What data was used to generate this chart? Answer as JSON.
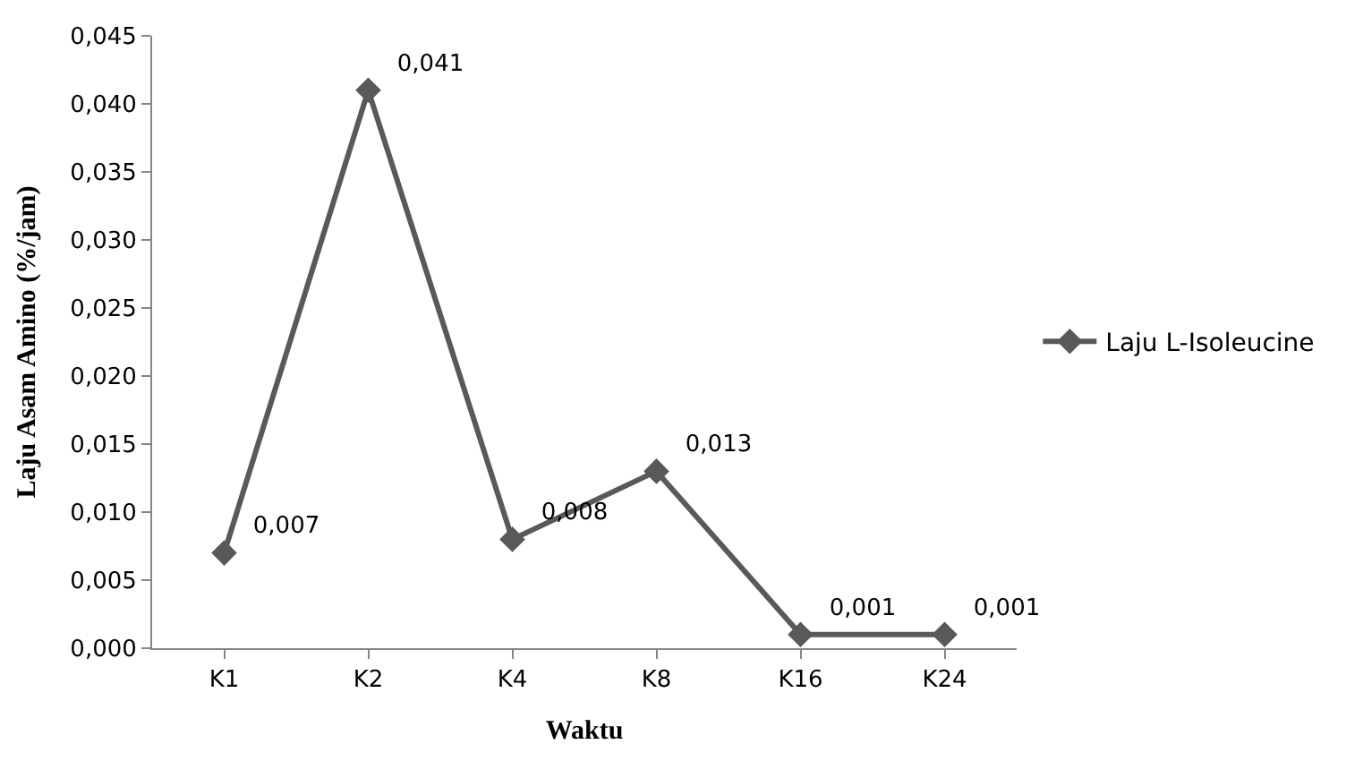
{
  "chart_data": {
    "type": "line",
    "xlabel": "Waktu",
    "ylabel": "Laju Asam Amino (%/jam)",
    "categories": [
      "K1",
      "K2",
      "K4",
      "K8",
      "K16",
      "K24"
    ],
    "series": [
      {
        "name": "Laju L-Isoleucine",
        "color": "#595959",
        "values": [
          0.007,
          0.041,
          0.008,
          0.013,
          0.001,
          0.001
        ],
        "value_labels": [
          "0,007",
          "0,041",
          "0,008",
          "0,013",
          "0,001",
          "0,001"
        ]
      }
    ],
    "ylim": [
      0,
      0.045
    ],
    "yticks": [
      {
        "value": 0,
        "label": "0,000"
      },
      {
        "value": 0.005,
        "label": "0,005"
      },
      {
        "value": 0.01,
        "label": "0,010"
      },
      {
        "value": 0.015,
        "label": "0,015"
      },
      {
        "value": 0.02,
        "label": "0,020"
      },
      {
        "value": 0.025,
        "label": "0,025"
      },
      {
        "value": 0.03,
        "label": "0,030"
      },
      {
        "value": 0.035,
        "label": "0,035"
      },
      {
        "value": 0.04,
        "label": "0,040"
      },
      {
        "value": 0.045,
        "label": "0,045"
      }
    ],
    "legend": "right",
    "marker": "diamond",
    "line_style": "solid"
  }
}
